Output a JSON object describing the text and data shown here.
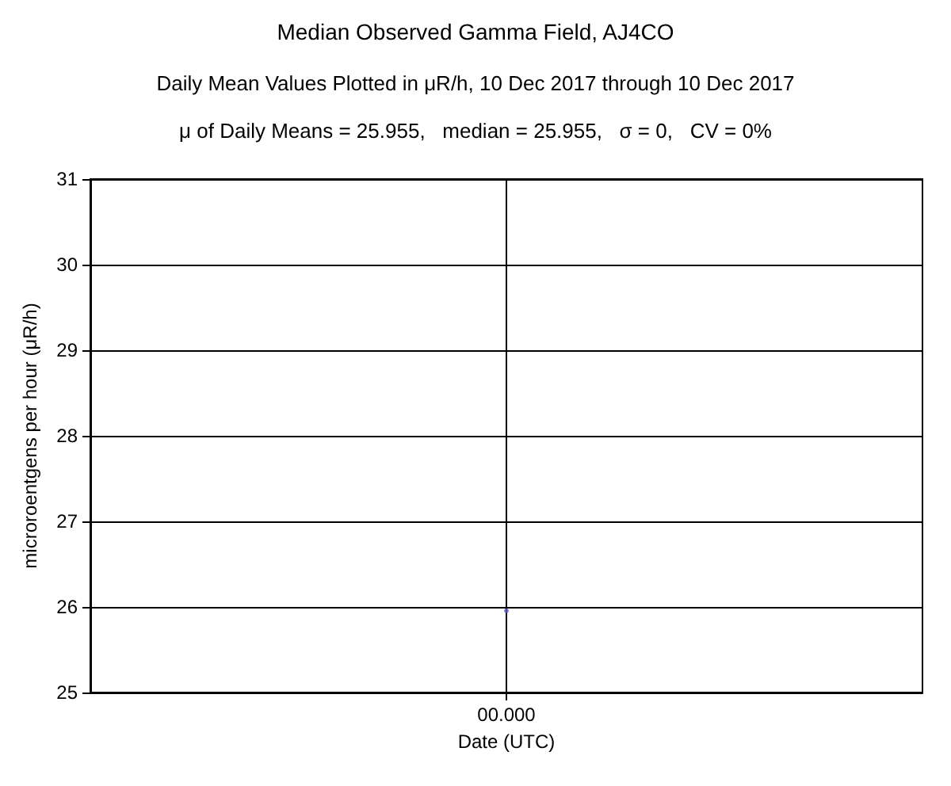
{
  "chart_data": {
    "type": "scatter",
    "title": "Median Observed Gamma Field, AJ4CO",
    "subtitle": "Daily Mean Values Plotted in μR/h, 10 Dec 2017 through 10 Dec 2017",
    "annotations": [
      "μ of Daily Means = 25.955,   median = 25.955,   σ = 0,   CV = 0%"
    ],
    "xlabel": "Date (UTC)",
    "ylabel": "microroentgens per hour (μR/h)",
    "categories": [
      "00.000"
    ],
    "series": [
      {
        "color": "#5a5ac8",
        "values": [
          25.955
        ]
      }
    ],
    "ylim": [
      25,
      31
    ],
    "yticks": [
      25,
      26,
      27,
      28,
      29,
      30,
      31
    ],
    "grid": true,
    "marker": "circle"
  }
}
